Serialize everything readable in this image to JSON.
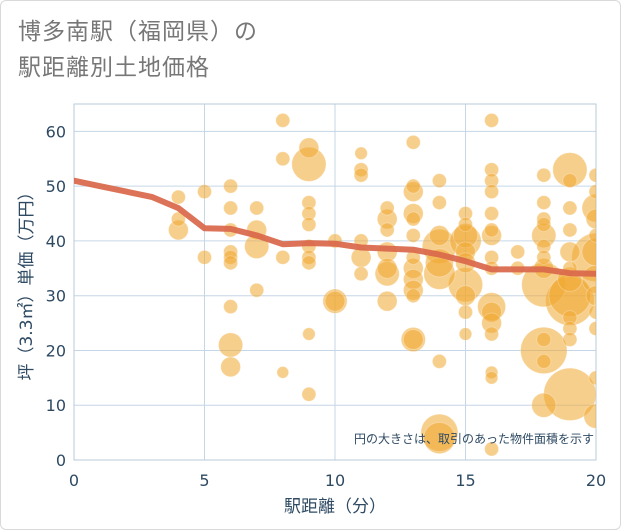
{
  "chart_data": {
    "type": "scatter",
    "title_line1": "博多南駅（福岡県）の",
    "title_line2": "駅距離別土地価格",
    "xlabel": "駅距離（分）",
    "ylabel": "坪（3.3㎡）単価（万円）",
    "xlim": [
      0,
      20
    ],
    "ylim": [
      0,
      65
    ],
    "xticks": [
      0,
      5,
      10,
      15,
      20
    ],
    "yticks": [
      0,
      10,
      20,
      30,
      40,
      50,
      60
    ],
    "grid": true,
    "note": "円の大きさは、取引のあった物件面積を示す",
    "colors": {
      "bubble": "#f0a830",
      "trend": "#d9674a",
      "grid": "#c5d6e6",
      "axis": "#2e4a63"
    },
    "trend_line": {
      "x": [
        0,
        1,
        2,
        3,
        4,
        5,
        6,
        7,
        8,
        9,
        10,
        11,
        12,
        13,
        14,
        15,
        16,
        17,
        18,
        19,
        20
      ],
      "y": [
        51,
        50,
        49,
        48,
        46,
        42.3,
        42.2,
        41,
        39.4,
        39.6,
        39.5,
        38.8,
        38.6,
        38.4,
        37.5,
        36.3,
        34.8,
        34.8,
        34.8,
        34.1,
        34
      ]
    },
    "points": [
      {
        "x": 4,
        "y": 48,
        "s": 1
      },
      {
        "x": 4,
        "y": 44,
        "s": 1
      },
      {
        "x": 4,
        "y": 42,
        "s": 2
      },
      {
        "x": 5,
        "y": 49,
        "s": 1
      },
      {
        "x": 5,
        "y": 37,
        "s": 1
      },
      {
        "x": 6,
        "y": 50,
        "s": 1
      },
      {
        "x": 6,
        "y": 46,
        "s": 1
      },
      {
        "x": 6,
        "y": 42,
        "s": 1
      },
      {
        "x": 6,
        "y": 38,
        "s": 1
      },
      {
        "x": 6,
        "y": 37,
        "s": 1
      },
      {
        "x": 6,
        "y": 36,
        "s": 1
      },
      {
        "x": 6,
        "y": 28,
        "s": 1
      },
      {
        "x": 6,
        "y": 21,
        "s": 3
      },
      {
        "x": 6,
        "y": 17,
        "s": 2
      },
      {
        "x": 7,
        "y": 46,
        "s": 1
      },
      {
        "x": 7,
        "y": 42,
        "s": 2
      },
      {
        "x": 7,
        "y": 39,
        "s": 3
      },
      {
        "x": 7,
        "y": 31,
        "s": 1
      },
      {
        "x": 8,
        "y": 62,
        "s": 1
      },
      {
        "x": 8,
        "y": 55,
        "s": 1
      },
      {
        "x": 8,
        "y": 37,
        "s": 1
      },
      {
        "x": 8,
        "y": 16,
        "s": 0.7
      },
      {
        "x": 9,
        "y": 57,
        "s": 2
      },
      {
        "x": 9,
        "y": 54,
        "s": 6
      },
      {
        "x": 9,
        "y": 47,
        "s": 1
      },
      {
        "x": 9,
        "y": 45,
        "s": 1
      },
      {
        "x": 9,
        "y": 43,
        "s": 1
      },
      {
        "x": 9,
        "y": 39,
        "s": 1
      },
      {
        "x": 9,
        "y": 37,
        "s": 1
      },
      {
        "x": 9,
        "y": 36,
        "s": 1
      },
      {
        "x": 9,
        "y": 23,
        "s": 0.8
      },
      {
        "x": 9,
        "y": 12,
        "s": 1
      },
      {
        "x": 10,
        "y": 40,
        "s": 1
      },
      {
        "x": 10,
        "y": 29,
        "s": 3
      },
      {
        "x": 10,
        "y": 29,
        "s": 2
      },
      {
        "x": 11,
        "y": 56,
        "s": 0.8
      },
      {
        "x": 11,
        "y": 53,
        "s": 1
      },
      {
        "x": 11,
        "y": 52,
        "s": 1
      },
      {
        "x": 11,
        "y": 40,
        "s": 1
      },
      {
        "x": 11,
        "y": 37,
        "s": 2
      },
      {
        "x": 11,
        "y": 34,
        "s": 1
      },
      {
        "x": 12,
        "y": 46,
        "s": 1
      },
      {
        "x": 12,
        "y": 44,
        "s": 2
      },
      {
        "x": 12,
        "y": 42,
        "s": 1
      },
      {
        "x": 12,
        "y": 38,
        "s": 2
      },
      {
        "x": 12,
        "y": 35,
        "s": 2
      },
      {
        "x": 12,
        "y": 34,
        "s": 3
      },
      {
        "x": 12,
        "y": 29,
        "s": 2
      },
      {
        "x": 13,
        "y": 58,
        "s": 1
      },
      {
        "x": 13,
        "y": 50,
        "s": 1
      },
      {
        "x": 13,
        "y": 49,
        "s": 2
      },
      {
        "x": 13,
        "y": 45,
        "s": 2
      },
      {
        "x": 13,
        "y": 44,
        "s": 1
      },
      {
        "x": 13,
        "y": 41,
        "s": 1
      },
      {
        "x": 13,
        "y": 37,
        "s": 1
      },
      {
        "x": 13,
        "y": 35,
        "s": 2
      },
      {
        "x": 13,
        "y": 33,
        "s": 2
      },
      {
        "x": 13,
        "y": 31,
        "s": 2
      },
      {
        "x": 13,
        "y": 30,
        "s": 1
      },
      {
        "x": 13,
        "y": 22,
        "s": 3
      },
      {
        "x": 13,
        "y": 22,
        "s": 2
      },
      {
        "x": 14,
        "y": 51,
        "s": 1
      },
      {
        "x": 14,
        "y": 47,
        "s": 1
      },
      {
        "x": 14,
        "y": 41,
        "s": 2
      },
      {
        "x": 14,
        "y": 39,
        "s": 6
      },
      {
        "x": 14,
        "y": 36,
        "s": 4
      },
      {
        "x": 14,
        "y": 34,
        "s": 5
      },
      {
        "x": 14,
        "y": 18,
        "s": 1
      },
      {
        "x": 14,
        "y": 5,
        "s": 7
      },
      {
        "x": 14,
        "y": 4,
        "s": 5
      },
      {
        "x": 15,
        "y": 45,
        "s": 1
      },
      {
        "x": 15,
        "y": 43,
        "s": 1
      },
      {
        "x": 15,
        "y": 41,
        "s": 3
      },
      {
        "x": 15,
        "y": 40,
        "s": 5
      },
      {
        "x": 15,
        "y": 38,
        "s": 2
      },
      {
        "x": 15,
        "y": 36,
        "s": 2
      },
      {
        "x": 15,
        "y": 32,
        "s": 6
      },
      {
        "x": 15,
        "y": 30,
        "s": 2
      },
      {
        "x": 15,
        "y": 27,
        "s": 1
      },
      {
        "x": 15,
        "y": 23,
        "s": 0.8
      },
      {
        "x": 16,
        "y": 62,
        "s": 1
      },
      {
        "x": 16,
        "y": 53,
        "s": 1
      },
      {
        "x": 16,
        "y": 51,
        "s": 1
      },
      {
        "x": 16,
        "y": 49,
        "s": 1
      },
      {
        "x": 16,
        "y": 45,
        "s": 1
      },
      {
        "x": 16,
        "y": 42,
        "s": 1
      },
      {
        "x": 16,
        "y": 41,
        "s": 2
      },
      {
        "x": 16,
        "y": 37,
        "s": 1
      },
      {
        "x": 16,
        "y": 35,
        "s": 1
      },
      {
        "x": 16,
        "y": 28,
        "s": 4
      },
      {
        "x": 16,
        "y": 27,
        "s": 2
      },
      {
        "x": 16,
        "y": 25,
        "s": 2
      },
      {
        "x": 16,
        "y": 23,
        "s": 1
      },
      {
        "x": 16,
        "y": 16,
        "s": 0.8
      },
      {
        "x": 16,
        "y": 15,
        "s": 0.8
      },
      {
        "x": 16,
        "y": 2,
        "s": 1
      },
      {
        "x": 17,
        "y": 38,
        "s": 1
      },
      {
        "x": 17,
        "y": 35,
        "s": 1
      },
      {
        "x": 18,
        "y": 52,
        "s": 1
      },
      {
        "x": 18,
        "y": 47,
        "s": 1
      },
      {
        "x": 18,
        "y": 44,
        "s": 1
      },
      {
        "x": 18,
        "y": 43,
        "s": 1
      },
      {
        "x": 18,
        "y": 41,
        "s": 3
      },
      {
        "x": 18,
        "y": 39,
        "s": 1
      },
      {
        "x": 18,
        "y": 37,
        "s": 1
      },
      {
        "x": 18,
        "y": 35,
        "s": 2
      },
      {
        "x": 18,
        "y": 32,
        "s": 10
      },
      {
        "x": 18,
        "y": 22,
        "s": 1
      },
      {
        "x": 18,
        "y": 20,
        "s": 11
      },
      {
        "x": 18,
        "y": 18,
        "s": 1
      },
      {
        "x": 18,
        "y": 10,
        "s": 3
      },
      {
        "x": 19,
        "y": 53,
        "s": 6
      },
      {
        "x": 19,
        "y": 51,
        "s": 1
      },
      {
        "x": 19,
        "y": 46,
        "s": 1
      },
      {
        "x": 19,
        "y": 42,
        "s": 1
      },
      {
        "x": 19,
        "y": 38,
        "s": 2
      },
      {
        "x": 19,
        "y": 35,
        "s": 1
      },
      {
        "x": 19,
        "y": 33,
        "s": 3
      },
      {
        "x": 19,
        "y": 30,
        "s": 9
      },
      {
        "x": 19,
        "y": 29,
        "s": 12
      },
      {
        "x": 19,
        "y": 26,
        "s": 1
      },
      {
        "x": 19,
        "y": 24,
        "s": 1
      },
      {
        "x": 19,
        "y": 22,
        "s": 1
      },
      {
        "x": 19,
        "y": 12,
        "s": 14
      },
      {
        "x": 20,
        "y": 52,
        "s": 1
      },
      {
        "x": 20,
        "y": 49,
        "s": 1
      },
      {
        "x": 20,
        "y": 46,
        "s": 4
      },
      {
        "x": 20,
        "y": 44,
        "s": 2
      },
      {
        "x": 20,
        "y": 41,
        "s": 1
      },
      {
        "x": 20,
        "y": 38,
        "s": 4
      },
      {
        "x": 20,
        "y": 37,
        "s": 12
      },
      {
        "x": 20,
        "y": 33,
        "s": 4
      },
      {
        "x": 20,
        "y": 30,
        "s": 2
      },
      {
        "x": 20,
        "y": 27,
        "s": 1
      },
      {
        "x": 20,
        "y": 24,
        "s": 1
      },
      {
        "x": 20,
        "y": 15,
        "s": 1
      },
      {
        "x": 20,
        "y": 8,
        "s": 3
      }
    ]
  }
}
